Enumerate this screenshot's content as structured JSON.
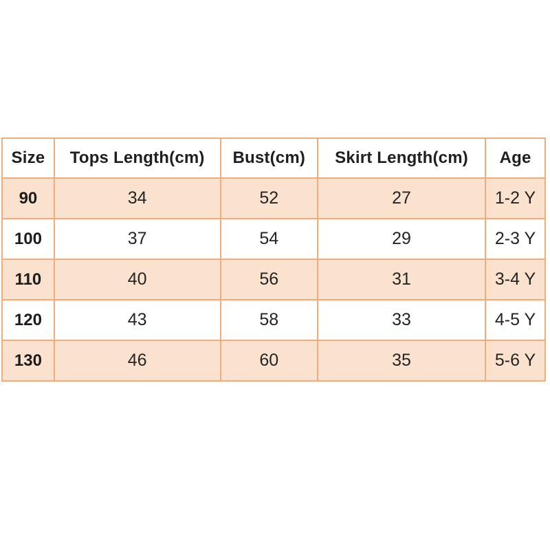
{
  "colors": {
    "background": "#ffffff",
    "row_alternate": "#fbe2ce",
    "border": "#f0ac7d",
    "text": "#1f1f1f"
  },
  "chart_data": {
    "type": "table",
    "title": "",
    "columns": [
      "Size",
      "Tops Length(cm)",
      "Bust(cm)",
      "Skirt Length(cm)",
      "Age"
    ],
    "rows": [
      [
        "90",
        "34",
        "52",
        "27",
        "1-2 Y"
      ],
      [
        "100",
        "37",
        "54",
        "29",
        "2-3 Y"
      ],
      [
        "110",
        "40",
        "56",
        "31",
        "3-4 Y"
      ],
      [
        "120",
        "43",
        "58",
        "33",
        "4-5 Y"
      ],
      [
        "130",
        "46",
        "60",
        "35",
        "5-6 Y"
      ]
    ]
  }
}
